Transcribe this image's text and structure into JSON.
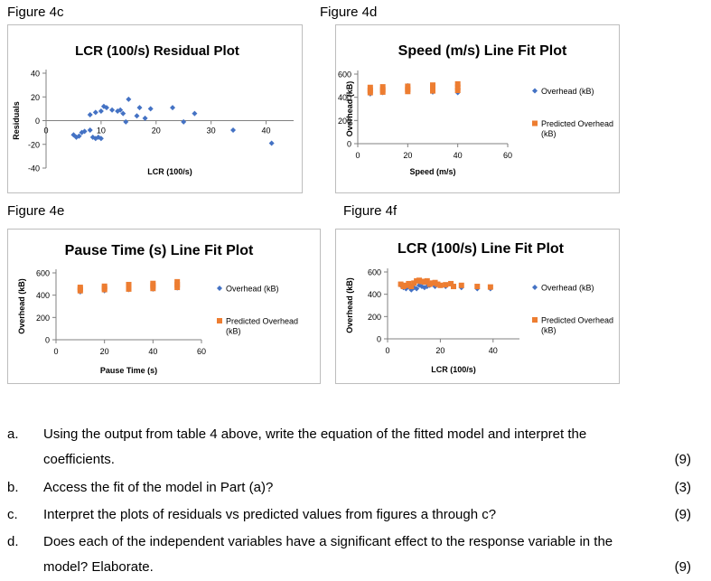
{
  "figures": {
    "c": "Figure 4c",
    "d": "Figure 4d",
    "e": "Figure 4e",
    "f": "Figure 4f"
  },
  "colors": {
    "overhead": "#4472c4",
    "predicted": "#ed7d31",
    "axis": "#808080",
    "frame": "#bdbdbd"
  },
  "chart_data": [
    {
      "id": "fig4c",
      "type": "scatter",
      "title": "LCR (100/s)  Residual Plot",
      "xlabel": "LCR (100/s)",
      "ylabel": "Residuals",
      "xlim": [
        0,
        45
      ],
      "ylim": [
        -40,
        40
      ],
      "xticks": [
        0,
        10,
        20,
        30,
        40
      ],
      "yticks": [
        40,
        20,
        0,
        -20,
        -40
      ],
      "grid": false,
      "legend": "none",
      "series": [
        {
          "color": "overhead",
          "marker": "diamond",
          "points": [
            [
              5,
              -12
            ],
            [
              5.5,
              -14
            ],
            [
              6,
              -13
            ],
            [
              6.5,
              -10
            ],
            [
              7,
              -9
            ],
            [
              8,
              -8
            ],
            [
              8.5,
              -14
            ],
            [
              9,
              -15
            ],
            [
              9.5,
              -14
            ],
            [
              10,
              -15
            ],
            [
              8,
              5
            ],
            [
              9,
              7
            ],
            [
              10,
              8
            ],
            [
              10.5,
              12
            ],
            [
              11,
              11
            ],
            [
              12,
              9
            ],
            [
              13,
              8
            ],
            [
              13.5,
              9
            ],
            [
              14,
              6
            ],
            [
              14.5,
              -1
            ],
            [
              15,
              18
            ],
            [
              16.5,
              4
            ],
            [
              17,
              11
            ],
            [
              18,
              2
            ],
            [
              19,
              10
            ],
            [
              23,
              11
            ],
            [
              25,
              -1
            ],
            [
              27,
              6
            ],
            [
              34,
              -8
            ],
            [
              41,
              -19
            ]
          ]
        }
      ]
    },
    {
      "id": "fig4d",
      "type": "scatter",
      "title": "Speed (m/s)  Line Fit  Plot",
      "xlabel": "Speed (m/s)",
      "ylabel": "Overhead (kB)",
      "xlim": [
        0,
        60
      ],
      "ylim": [
        0,
        600
      ],
      "xticks": [
        0,
        20,
        40,
        60
      ],
      "yticks": [
        600,
        400,
        200,
        0
      ],
      "grid": false,
      "legend": "right",
      "series": [
        {
          "name": "Overhead (kB)",
          "color": "overhead",
          "marker": "diamond",
          "points": [
            [
              5,
              430
            ],
            [
              5,
              455
            ],
            [
              5,
              480
            ],
            [
              10,
              440
            ],
            [
              10,
              460
            ],
            [
              10,
              470
            ],
            [
              20,
              450
            ],
            [
              20,
              475
            ],
            [
              20,
              500
            ],
            [
              30,
              445
            ],
            [
              30,
              470
            ],
            [
              30,
              495
            ],
            [
              40,
              440
            ],
            [
              40,
              470
            ],
            [
              40,
              510
            ]
          ]
        },
        {
          "name": "Predicted Overhead (kB)",
          "color": "predicted",
          "marker": "square",
          "points": [
            [
              5,
              440
            ],
            [
              5,
              460
            ],
            [
              5,
              485
            ],
            [
              10,
              445
            ],
            [
              10,
              465
            ],
            [
              10,
              490
            ],
            [
              20,
              450
            ],
            [
              20,
              470
            ],
            [
              20,
              495
            ],
            [
              30,
              455
            ],
            [
              30,
              480
            ],
            [
              30,
              505
            ],
            [
              40,
              460
            ],
            [
              40,
              485
            ],
            [
              40,
              515
            ]
          ]
        }
      ]
    },
    {
      "id": "fig4e",
      "type": "scatter",
      "title": "Pause Time (s) Line Fit  Plot",
      "xlabel": "Pause Time (s)",
      "ylabel": "Overhead (kB)",
      "xlim": [
        0,
        60
      ],
      "ylim": [
        0,
        600
      ],
      "xticks": [
        0,
        20,
        40,
        60
      ],
      "yticks": [
        600,
        400,
        200,
        0
      ],
      "grid": false,
      "legend": "right",
      "series": [
        {
          "name": "Overhead (kB)",
          "color": "overhead",
          "marker": "diamond",
          "points": [
            [
              10,
              430
            ],
            [
              10,
              450
            ],
            [
              20,
              440
            ],
            [
              20,
              460
            ],
            [
              30,
              450
            ],
            [
              30,
              470
            ],
            [
              40,
              455
            ],
            [
              40,
              480
            ],
            [
              50,
              465
            ],
            [
              50,
              490
            ]
          ]
        },
        {
          "name": "Predicted Overhead (kB)",
          "color": "predicted",
          "marker": "square",
          "points": [
            [
              10,
              440
            ],
            [
              10,
              455
            ],
            [
              10,
              470
            ],
            [
              20,
              450
            ],
            [
              20,
              465
            ],
            [
              20,
              480
            ],
            [
              30,
              455
            ],
            [
              30,
              475
            ],
            [
              30,
              495
            ],
            [
              40,
              460
            ],
            [
              40,
              485
            ],
            [
              40,
              505
            ],
            [
              50,
              470
            ],
            [
              50,
              495
            ],
            [
              50,
              520
            ]
          ]
        }
      ]
    },
    {
      "id": "fig4f",
      "type": "scatter",
      "title": "LCR (100/s) Line Fit  Plot",
      "xlabel": "LCR (100/s)",
      "ylabel": "Overhead (kB)",
      "xlim": [
        0,
        50
      ],
      "ylim": [
        0,
        600
      ],
      "xticks": [
        0,
        20,
        40
      ],
      "yticks": [
        600,
        400,
        200,
        0
      ],
      "grid": false,
      "legend": "right",
      "series": [
        {
          "name": "Overhead (kB)",
          "color": "overhead",
          "marker": "diamond",
          "points": [
            [
              5,
              480
            ],
            [
              6,
              460
            ],
            [
              7,
              450
            ],
            [
              8,
              470
            ],
            [
              9,
              440
            ],
            [
              10,
              460
            ],
            [
              11,
              450
            ],
            [
              12,
              480
            ],
            [
              13,
              470
            ],
            [
              14,
              460
            ],
            [
              15,
              470
            ],
            [
              16,
              480
            ],
            [
              18,
              470
            ],
            [
              20,
              480
            ],
            [
              22,
              470
            ],
            [
              25,
              470
            ],
            [
              28,
              460
            ],
            [
              34,
              450
            ],
            [
              39,
              450
            ]
          ]
        },
        {
          "name": "Predicted Overhead (kB)",
          "color": "predicted",
          "marker": "square",
          "points": [
            [
              5,
              490
            ],
            [
              6,
              470
            ],
            [
              7,
              480
            ],
            [
              8,
              495
            ],
            [
              9,
              470
            ],
            [
              10,
              500
            ],
            [
              11,
              520
            ],
            [
              12,
              525
            ],
            [
              13,
              515
            ],
            [
              14,
              510
            ],
            [
              15,
              520
            ],
            [
              16,
              490
            ],
            [
              17,
              500
            ],
            [
              18,
              505
            ],
            [
              19,
              490
            ],
            [
              20,
              480
            ],
            [
              22,
              485
            ],
            [
              24,
              495
            ],
            [
              25,
              470
            ],
            [
              28,
              480
            ],
            [
              34,
              470
            ],
            [
              39,
              465
            ]
          ]
        }
      ]
    }
  ],
  "questions": [
    {
      "letter": "a.",
      "lines": [
        "Using the output from table 4 above, write the equation of the fitted model and interpret the",
        "coefficients."
      ],
      "marks": "(9)"
    },
    {
      "letter": "b.",
      "lines": [
        "Access the fit of the model in Part (a)?"
      ],
      "marks": "(3)"
    },
    {
      "letter": "c.",
      "lines": [
        "Interpret the plots of residuals vs predicted values from figures a through c?"
      ],
      "marks": "(9)"
    },
    {
      "letter": "d.",
      "lines": [
        "Does each of the independent variables have a significant effect to the response variable in the",
        "model? Elaborate."
      ],
      "marks": "(9)"
    }
  ]
}
